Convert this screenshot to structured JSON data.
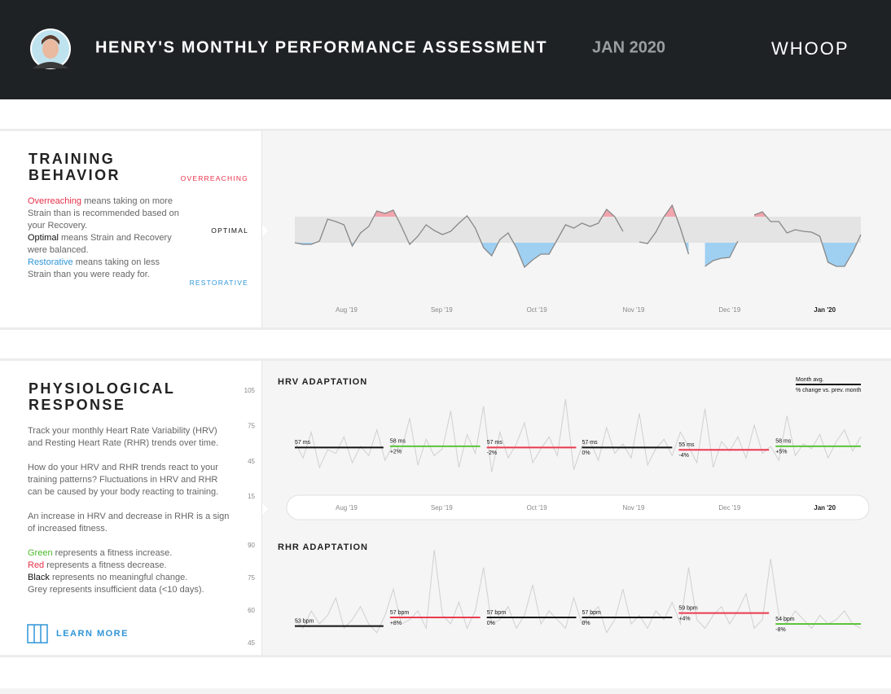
{
  "header": {
    "title": "HENRY'S MONTHLY PERFORMANCE ASSESSMENT",
    "period": "JAN 2020",
    "brand": "WHOOP"
  },
  "training": {
    "title": "TRAINING BEHAVIOR",
    "zones": {
      "overreaching": "OVERREACHING",
      "optimal": "OPTIMAL",
      "restorative": "RESTORATIVE"
    },
    "description": [
      [
        "Overreaching",
        " means taking on more Strain than is recommended based on your Recovery."
      ],
      [
        "Optimal",
        " means Strain and Recovery were balanced."
      ],
      [
        "Restorative",
        " means taking on less Strain than you were ready for."
      ]
    ]
  },
  "physiological": {
    "title": "PHYSIOLOGICAL RESPONSE",
    "paragraphs": [
      "Track your monthly Heart Rate Variability (HRV) and Resting Heart Rate (RHR) trends over time.",
      "How do your HRV and RHR trends react to your training patterns? Fluctuations in HRV and RHR can be caused by your body reacting to training.",
      "An increase in HRV and decrease in RHR is a sign of increased fitness."
    ],
    "key": [
      [
        "Green",
        " represents a fitness increase."
      ],
      [
        "Red",
        " represents a fitness decrease."
      ],
      [
        "Black",
        " represents no meaningful change."
      ],
      [
        "",
        "Grey represents insufficient data (<10 days)."
      ]
    ],
    "learn_more": "LEARN MORE"
  },
  "chart_data": [
    {
      "type": "band-line",
      "color": "#888888",
      "over_color": "#f2a5ad",
      "under_color": "#9fd0f2",
      "band_color": "#e4e4e4",
      "optimal_range": [
        -16,
        16
      ],
      "ylim": [
        -60,
        60
      ],
      "xlim": [
        0,
        69
      ],
      "xticks": [
        {
          "value": 6.3,
          "label": "Aug '19"
        },
        {
          "value": 17.9,
          "label": "Sep '19"
        },
        {
          "value": 29.5,
          "label": "Oct '19"
        },
        {
          "value": 41.3,
          "label": "Nov '19"
        },
        {
          "value": 53,
          "label": "Dec '19"
        },
        {
          "value": 64.6,
          "label": "Jan '20"
        }
      ],
      "values": [
        -16,
        -18,
        -18,
        -14,
        13,
        10,
        6,
        -20,
        -4,
        4,
        23,
        20,
        24,
        4,
        -18,
        -8,
        6,
        -1,
        -6,
        -2,
        8,
        17,
        2,
        -22,
        -32,
        -12,
        -4,
        -22,
        -46,
        -37,
        -30,
        -30,
        -12,
        6,
        2,
        8,
        4,
        8,
        25,
        16,
        -2,
        null,
        -15,
        -17,
        -3,
        16,
        30,
        2,
        -30,
        null,
        -45,
        -38,
        -35,
        -34,
        -14,
        null,
        18,
        22,
        10,
        10,
        -4,
        0,
        -2,
        -3,
        -8,
        -40,
        -45,
        -45,
        -28,
        -6
      ]
    },
    {
      "type": "month-avg",
      "title": "HRV ADAPTATION",
      "color": "#d0d0d0",
      "legend": {
        "title": "Month avg.",
        "note": "% change vs. prev. month"
      },
      "ylim": [
        15,
        105
      ],
      "yticks": [
        105,
        75,
        45,
        15
      ],
      "xlim": [
        0,
        69
      ],
      "xticks": [
        {
          "value": 6.3,
          "label": "Aug '19"
        },
        {
          "value": 17.9,
          "label": "Sep '19"
        },
        {
          "value": 29.5,
          "label": "Oct '19"
        },
        {
          "value": 41.3,
          "label": "Nov '19"
        },
        {
          "value": 53,
          "label": "Dec '19"
        },
        {
          "value": 64.6,
          "label": "Jan '20"
        }
      ],
      "values": [
        62,
        48,
        70,
        40,
        55,
        52,
        66,
        44,
        58,
        50,
        72,
        46,
        60,
        54,
        82,
        42,
        64,
        50,
        56,
        88,
        40,
        68,
        52,
        92,
        36,
        70,
        48,
        60,
        78,
        44,
        56,
        66,
        50,
        98,
        38,
        58,
        62,
        46,
        74,
        52,
        60,
        48,
        86,
        42,
        56,
        64,
        50,
        70,
        58,
        44,
        90,
        40,
        62,
        54,
        66,
        48,
        76,
        52,
        58,
        46,
        84,
        50,
        60,
        56,
        68,
        48,
        62,
        72,
        54,
        66
      ],
      "segments": [
        {
          "start": 0,
          "end": 10.8,
          "value": 57,
          "label": "57 ms",
          "color": "#111111"
        },
        {
          "start": 11.6,
          "end": 22.6,
          "value": 58,
          "label": "58 ms",
          "change_label": "+2%",
          "color": "#5cc43c"
        },
        {
          "start": 23.4,
          "end": 34.3,
          "value": 57,
          "label": "57 ms",
          "change_label": "-2%",
          "color": "#ea3a4e"
        },
        {
          "start": 35,
          "end": 46,
          "value": 57,
          "label": "57 ms",
          "change_label": "0%",
          "color": "#111111"
        },
        {
          "start": 46.8,
          "end": 57.8,
          "value": 55,
          "label": "55 ms",
          "change_label": "-4%",
          "color": "#ea3a4e"
        },
        {
          "start": 58.6,
          "end": 69,
          "value": 58,
          "label": "58 ms",
          "change_label": "+5%",
          "color": "#5cc43c"
        }
      ]
    },
    {
      "type": "month-avg",
      "title": "RHR ADAPTATION",
      "color": "#d0d0d0",
      "ylim": [
        45,
        90
      ],
      "yticks": [
        90,
        75,
        60,
        45
      ],
      "xlim": [
        0,
        69
      ],
      "values": [
        56,
        52,
        60,
        54,
        58,
        66,
        52,
        56,
        62,
        54,
        50,
        58,
        70,
        54,
        56,
        60,
        52,
        88,
        58,
        54,
        64,
        52,
        60,
        80,
        54,
        56,
        62,
        52,
        58,
        72,
        54,
        60,
        56,
        52,
        66,
        54,
        58,
        62,
        50,
        56,
        70,
        54,
        58,
        52,
        60,
        56,
        64,
        54,
        80,
        56,
        52,
        58,
        62,
        54,
        60,
        68,
        52,
        56,
        84,
        58,
        54,
        60,
        56,
        52,
        58,
        54,
        56,
        60,
        54,
        52
      ],
      "segments": [
        {
          "start": 0,
          "end": 10.8,
          "value": 53,
          "label": "53 bpm",
          "color": "#111111"
        },
        {
          "start": 11.6,
          "end": 22.6,
          "value": 57,
          "label": "57 bpm",
          "change_label": "+8%",
          "color": "#ea3a4e"
        },
        {
          "start": 23.4,
          "end": 34.3,
          "value": 57,
          "label": "57 bpm",
          "change_label": "0%",
          "color": "#111111"
        },
        {
          "start": 35,
          "end": 46,
          "value": 57,
          "label": "57 bpm",
          "change_label": "0%",
          "color": "#111111"
        },
        {
          "start": 46.8,
          "end": 57.8,
          "value": 59,
          "label": "59 bpm",
          "change_label": "+4%",
          "color": "#ea3a4e"
        },
        {
          "start": 58.6,
          "end": 69,
          "value": 54,
          "label": "54 bpm",
          "change_label": "-8%",
          "color": "#5cc43c"
        }
      ]
    }
  ]
}
